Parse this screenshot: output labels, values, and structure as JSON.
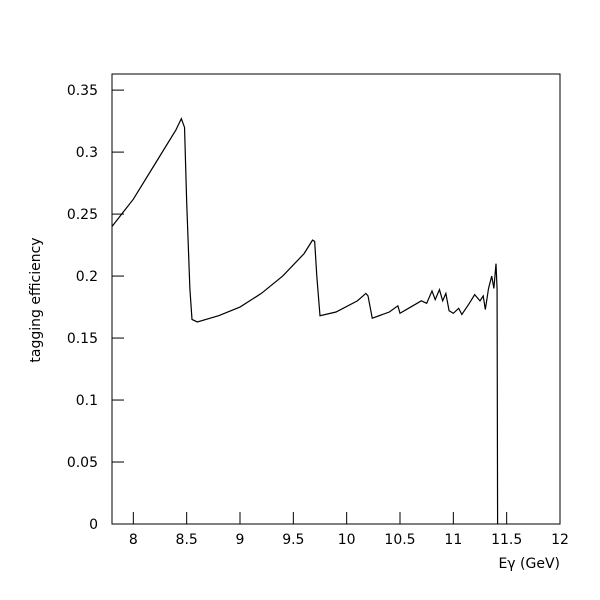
{
  "chart_data": {
    "type": "line",
    "x_label": "Eγ (GeV)",
    "y_label": "tagging efficiency",
    "x": [
      7.8,
      8.0,
      8.2,
      8.4,
      8.45,
      8.48,
      8.5,
      8.53,
      8.55,
      8.6,
      8.8,
      9.0,
      9.2,
      9.4,
      9.6,
      9.68,
      9.7,
      9.72,
      9.75,
      9.9,
      10.1,
      10.18,
      10.2,
      10.24,
      10.4,
      10.48,
      10.5,
      10.6,
      10.7,
      10.75,
      10.8,
      10.83,
      10.87,
      10.9,
      10.93,
      10.96,
      11.0,
      11.05,
      11.08,
      11.15,
      11.2,
      11.25,
      11.28,
      11.3,
      11.33,
      11.36,
      11.38,
      11.4,
      11.41,
      11.415
    ],
    "values": [
      0.24,
      0.262,
      0.29,
      0.318,
      0.327,
      0.32,
      0.26,
      0.19,
      0.165,
      0.163,
      0.168,
      0.175,
      0.186,
      0.2,
      0.218,
      0.229,
      0.228,
      0.2,
      0.168,
      0.171,
      0.18,
      0.186,
      0.184,
      0.166,
      0.171,
      0.176,
      0.17,
      0.175,
      0.18,
      0.178,
      0.188,
      0.181,
      0.189,
      0.18,
      0.186,
      0.172,
      0.17,
      0.174,
      0.169,
      0.178,
      0.185,
      0.18,
      0.184,
      0.173,
      0.19,
      0.2,
      0.19,
      0.21,
      0.19,
      0
    ],
    "color": "#000000",
    "xlim": [
      7.8,
      12
    ],
    "ylim": [
      0,
      0.363
    ],
    "xticks": [
      8,
      8.5,
      9,
      9.5,
      10,
      10.5,
      11,
      11.5,
      12
    ],
    "yticks": [
      0,
      0.05,
      0.1,
      0.15,
      0.2,
      0.25,
      0.3,
      0.35
    ]
  }
}
